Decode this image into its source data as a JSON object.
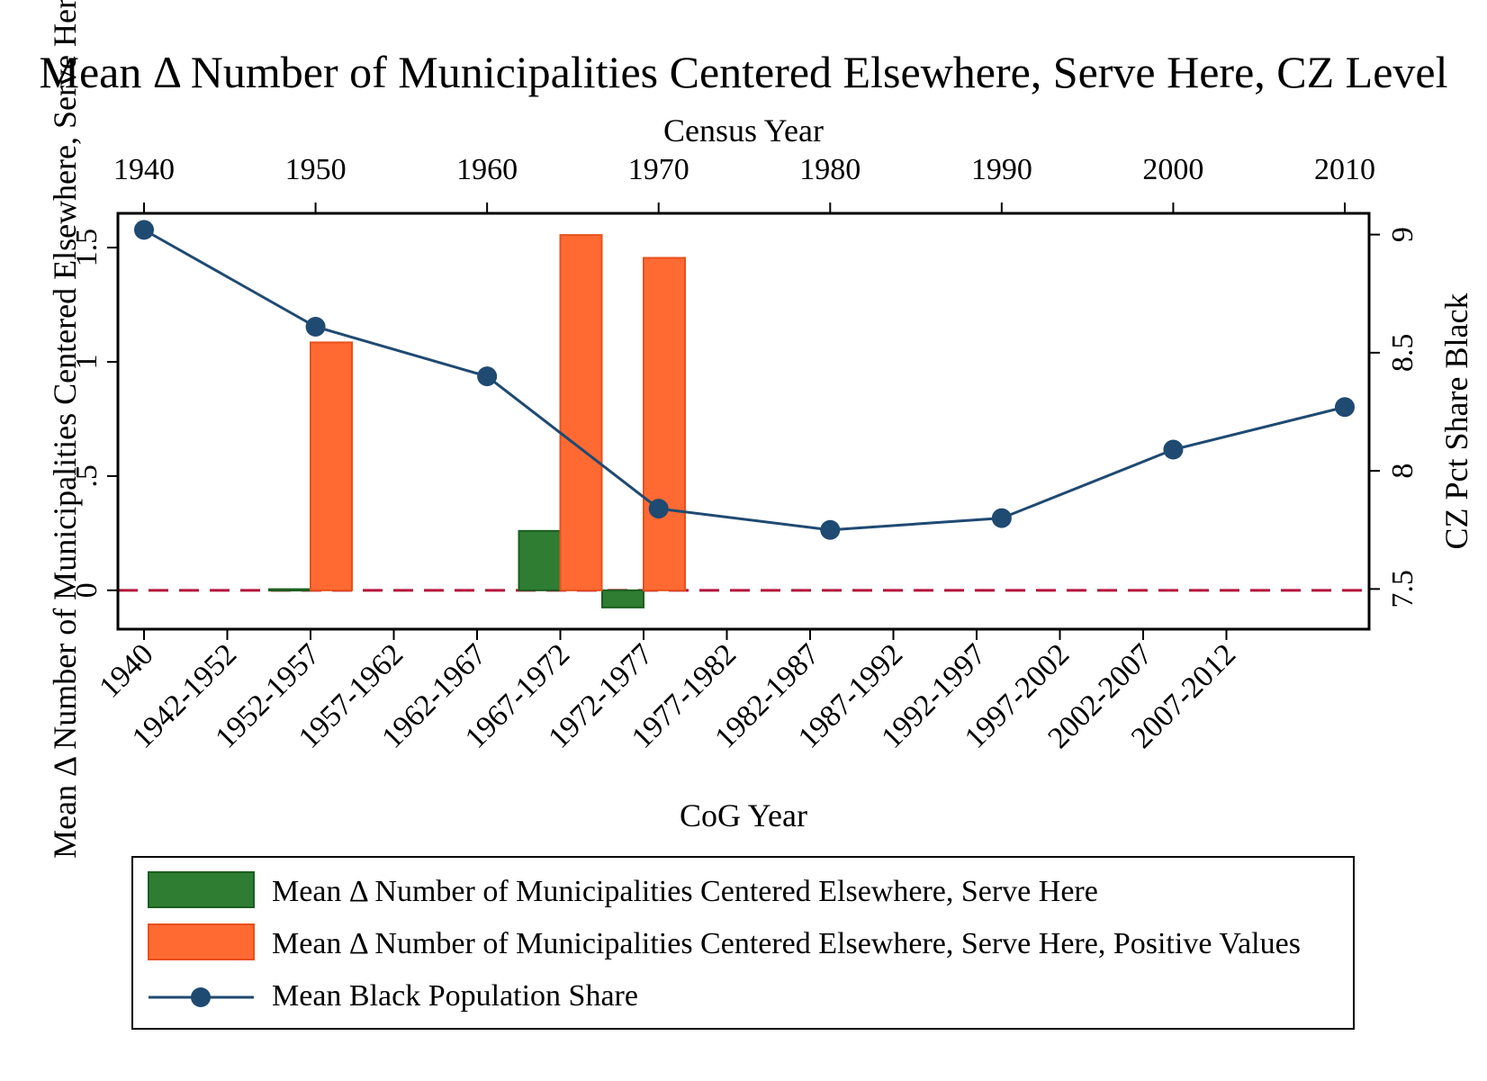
{
  "chart_data": {
    "type": "bar",
    "title": "Mean Δ Number of Municipalities Centered Elsewhere, Serve Here, CZ Level",
    "top_axis": {
      "label": "Census Year",
      "ticks": [
        "1940",
        "1950",
        "1960",
        "1970",
        "1980",
        "1990",
        "2000",
        "2010"
      ],
      "range": [
        1940,
        2010
      ]
    },
    "bottom_axis": {
      "label": "CoG Year",
      "categories": [
        "1940",
        "1942-1952",
        "1952-1957",
        "1957-1962",
        "1962-1967",
        "1967-1972",
        "1972-1977",
        "1977-1982",
        "1982-1987",
        "1987-1992",
        "1992-1997",
        "1997-2002",
        "2002-2007",
        "2007-2012"
      ]
    },
    "left_axis": {
      "label": "Mean Δ Number of Municipalities Centered Elsewhere, Serve Here",
      "ticks": [
        "0",
        ".5",
        "1",
        "1.5"
      ],
      "tick_values": [
        0,
        0.5,
        1,
        1.5
      ],
      "range": [
        -0.17,
        1.65
      ]
    },
    "right_axis": {
      "label": "CZ Pct Share Black",
      "ticks": [
        "7.5",
        "8",
        "8.5",
        "9"
      ],
      "tick_values": [
        7.5,
        8,
        8.5,
        9
      ],
      "range": [
        7.33,
        9.09
      ]
    },
    "reference_line": {
      "value": 0,
      "color": "#b5123a",
      "style": "dashed"
    },
    "series": [
      {
        "name": "Mean Δ Number of Municipalities Centered Elsewhere, Serve Here",
        "type": "bar",
        "axis": "left",
        "color": "#2e7d32",
        "categories": [
          "1952-1957",
          "1967-1972",
          "1972-1977"
        ],
        "values": [
          0.005,
          0.26,
          -0.075
        ]
      },
      {
        "name": "Mean Δ Number of Municipalities Centered Elsewhere, Serve Here, Positive Values",
        "type": "bar",
        "axis": "left",
        "color": "#ff6a33",
        "categories": [
          "1952-1957",
          "1967-1972",
          "1972-1977"
        ],
        "values": [
          1.085,
          1.555,
          1.455
        ]
      },
      {
        "name": "Mean Black Population Share",
        "type": "line",
        "axis": "right",
        "color": "#1f4a72",
        "x": [
          1940,
          1950,
          1960,
          1970,
          1980,
          1990,
          2000,
          2010
        ],
        "values": [
          9.02,
          8.61,
          8.4,
          7.84,
          7.75,
          7.8,
          8.09,
          8.27
        ]
      }
    ],
    "legend": {
      "position": "bottom",
      "entries": [
        "Mean Δ Number of Municipalities Centered Elsewhere, Serve Here",
        "Mean Δ Number of Municipalities Centered Elsewhere, Serve Here, Positive Values",
        "Mean Black Population Share"
      ]
    },
    "grid": false
  }
}
